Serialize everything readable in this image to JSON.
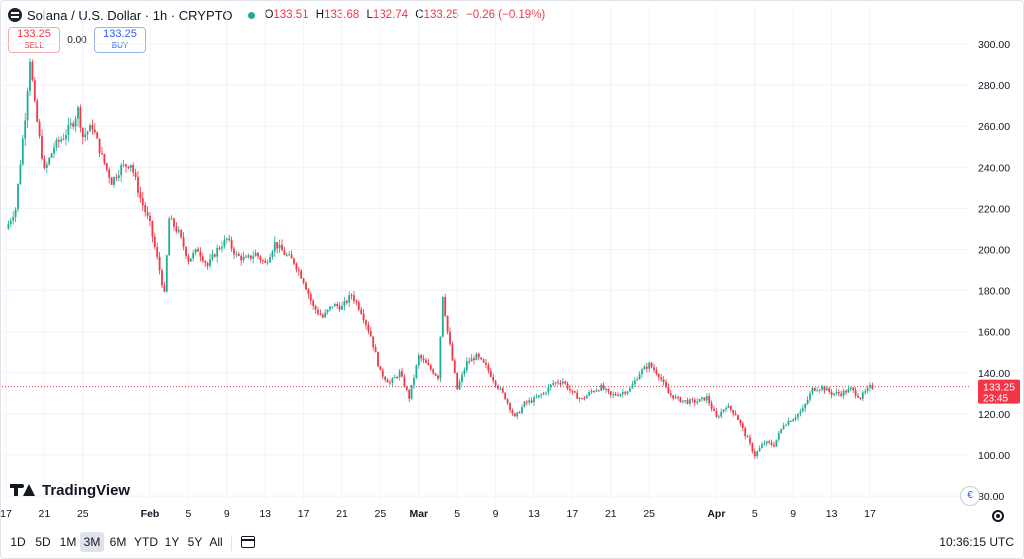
{
  "header": {
    "symbol": "Solana / U.S. Dollar · 1h · CRYPTO",
    "o_label": "O",
    "o_value": "133.51",
    "h_label": "H",
    "h_value": "133.68",
    "l_label": "L",
    "l_value": "132.74",
    "c_label": "C",
    "c_value": "133.25",
    "change": "−0.26 (−0.19%)"
  },
  "trade": {
    "sell_price": "133.25",
    "sell_label": "SELL",
    "spread": "0.00",
    "buy_price": "133.25",
    "buy_label": "BUY"
  },
  "price_tag": {
    "price": "133.25",
    "countdown": "23:45"
  },
  "branding": {
    "name": "TradingView"
  },
  "flag_icon": "€",
  "timeframes": [
    "1D",
    "5D",
    "1M",
    "3M",
    "6M",
    "YTD",
    "1Y",
    "5Y",
    "All"
  ],
  "active_timeframe": "3M",
  "clock": "10:36:15 UTC",
  "icons": [
    "solana-logo-icon",
    "market-status-dot-icon",
    "calendar-range-icon",
    "settings-gear-icon",
    "currency-flag-icon",
    "tradingview-logo-icon"
  ],
  "colors": {
    "up": "#22ab94",
    "down": "#f23645",
    "price_line": "#f23645",
    "grid": "#f0f3fa",
    "active_tf": "#e0e3eb"
  },
  "chart_data": {
    "type": "candlestick",
    "title": "",
    "xlabel": "",
    "ylabel": "",
    "ylim": [
      80,
      310
    ],
    "y_ticks": [
      300,
      280,
      260,
      240,
      220,
      200,
      180,
      160,
      140,
      120,
      100,
      80
    ],
    "y_tick_labels": [
      "300.00",
      "280.00",
      "260.00",
      "240.00",
      "220.00",
      "200.00",
      "180.00",
      "160.00",
      "140.00",
      "120.00",
      "100.00",
      "80.00"
    ],
    "x_tick_labels": [
      "17",
      "21",
      "25",
      "Feb",
      "5",
      "9",
      "13",
      "17",
      "21",
      "25",
      "Mar",
      "5",
      "9",
      "13",
      "17",
      "21",
      "25",
      "Apr",
      "5",
      "9",
      "13",
      "17"
    ],
    "x_tick_days": [
      -15,
      -11,
      -7,
      0,
      4,
      8,
      12,
      16,
      20,
      24,
      28,
      32,
      36,
      40,
      44,
      48,
      52,
      59,
      63,
      67,
      71,
      75
    ],
    "x_day_range": [
      -15,
      75.3
    ],
    "current_price": 133.25,
    "grid": true,
    "price_path": [
      {
        "day": -15,
        "price": 210
      },
      {
        "day": -14,
        "price": 220
      },
      {
        "day": -13,
        "price": 265
      },
      {
        "day": -12.5,
        "price": 293
      },
      {
        "day": -12,
        "price": 270
      },
      {
        "day": -11,
        "price": 238
      },
      {
        "day": -10,
        "price": 250
      },
      {
        "day": -9,
        "price": 255
      },
      {
        "day": -8,
        "price": 262
      },
      {
        "day": -7.5,
        "price": 268
      },
      {
        "day": -7,
        "price": 255
      },
      {
        "day": -6,
        "price": 260
      },
      {
        "day": -5,
        "price": 245
      },
      {
        "day": -4,
        "price": 233
      },
      {
        "day": -3,
        "price": 240
      },
      {
        "day": -2,
        "price": 242
      },
      {
        "day": -1,
        "price": 225
      },
      {
        "day": 0,
        "price": 212
      },
      {
        "day": 1,
        "price": 190
      },
      {
        "day": 1.5,
        "price": 178
      },
      {
        "day": 2,
        "price": 215
      },
      {
        "day": 3,
        "price": 208
      },
      {
        "day": 4,
        "price": 195
      },
      {
        "day": 5,
        "price": 200
      },
      {
        "day": 6,
        "price": 192
      },
      {
        "day": 7,
        "price": 200
      },
      {
        "day": 8,
        "price": 205
      },
      {
        "day": 9,
        "price": 197
      },
      {
        "day": 10,
        "price": 195
      },
      {
        "day": 11,
        "price": 198
      },
      {
        "day": 12,
        "price": 193
      },
      {
        "day": 13,
        "price": 203
      },
      {
        "day": 14,
        "price": 198
      },
      {
        "day": 15,
        "price": 194
      },
      {
        "day": 16,
        "price": 185
      },
      {
        "day": 17,
        "price": 172
      },
      {
        "day": 18,
        "price": 167
      },
      {
        "day": 19,
        "price": 173
      },
      {
        "day": 20,
        "price": 172
      },
      {
        "day": 21,
        "price": 178
      },
      {
        "day": 22,
        "price": 170
      },
      {
        "day": 23,
        "price": 158
      },
      {
        "day": 24,
        "price": 140
      },
      {
        "day": 25,
        "price": 135
      },
      {
        "day": 26,
        "price": 140
      },
      {
        "day": 27,
        "price": 128
      },
      {
        "day": 28,
        "price": 148
      },
      {
        "day": 29,
        "price": 143
      },
      {
        "day": 30,
        "price": 138
      },
      {
        "day": 30.5,
        "price": 178
      },
      {
        "day": 31,
        "price": 160
      },
      {
        "day": 32,
        "price": 132
      },
      {
        "day": 33,
        "price": 145
      },
      {
        "day": 34,
        "price": 148
      },
      {
        "day": 35,
        "price": 143
      },
      {
        "day": 36,
        "price": 135
      },
      {
        "day": 37,
        "price": 128
      },
      {
        "day": 38,
        "price": 118
      },
      {
        "day": 39,
        "price": 125
      },
      {
        "day": 40,
        "price": 127
      },
      {
        "day": 41,
        "price": 130
      },
      {
        "day": 42,
        "price": 135
      },
      {
        "day": 43,
        "price": 136
      },
      {
        "day": 44,
        "price": 130
      },
      {
        "day": 45,
        "price": 127
      },
      {
        "day": 46,
        "price": 131
      },
      {
        "day": 47,
        "price": 133
      },
      {
        "day": 48,
        "price": 129
      },
      {
        "day": 49,
        "price": 130
      },
      {
        "day": 50,
        "price": 132
      },
      {
        "day": 51,
        "price": 140
      },
      {
        "day": 52,
        "price": 144
      },
      {
        "day": 53,
        "price": 139
      },
      {
        "day": 54,
        "price": 130
      },
      {
        "day": 55,
        "price": 127
      },
      {
        "day": 56,
        "price": 126
      },
      {
        "day": 57,
        "price": 126
      },
      {
        "day": 58,
        "price": 128
      },
      {
        "day": 59,
        "price": 118
      },
      {
        "day": 60,
        "price": 124
      },
      {
        "day": 61,
        "price": 120
      },
      {
        "day": 62,
        "price": 110
      },
      {
        "day": 63,
        "price": 100
      },
      {
        "day": 64,
        "price": 106
      },
      {
        "day": 65,
        "price": 105
      },
      {
        "day": 66,
        "price": 115
      },
      {
        "day": 67,
        "price": 118
      },
      {
        "day": 68,
        "price": 122
      },
      {
        "day": 69,
        "price": 132
      },
      {
        "day": 70,
        "price": 133
      },
      {
        "day": 71,
        "price": 130
      },
      {
        "day": 72,
        "price": 130
      },
      {
        "day": 73,
        "price": 132
      },
      {
        "day": 74,
        "price": 128
      },
      {
        "day": 75,
        "price": 133
      }
    ]
  }
}
